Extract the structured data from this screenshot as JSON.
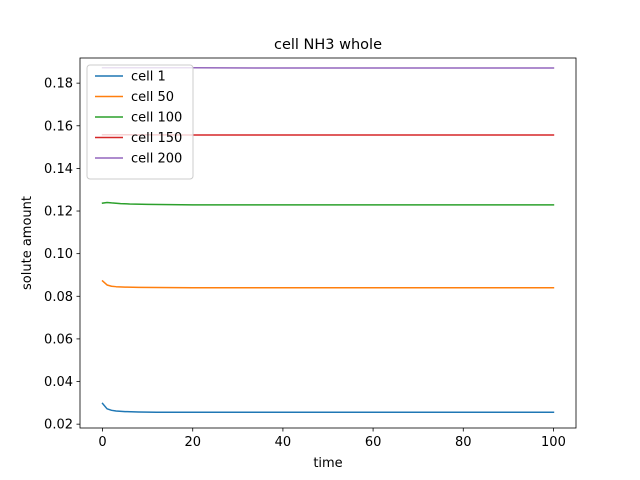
{
  "chart_data": {
    "type": "line",
    "title": "cell NH3 whole",
    "xlabel": "time",
    "ylabel": "solute amount",
    "xlim": [
      -5,
      105
    ],
    "ylim": [
      0.0182,
      0.1918
    ],
    "xticks": [
      0,
      20,
      40,
      60,
      80,
      100
    ],
    "yticks": [
      0.02,
      0.04,
      0.06,
      0.08,
      0.1,
      0.12,
      0.14,
      0.16,
      0.18
    ],
    "xtick_labels": [
      "0",
      "20",
      "40",
      "60",
      "80",
      "100"
    ],
    "ytick_labels": [
      "0.02",
      "0.04",
      "0.06",
      "0.08",
      "0.10",
      "0.12",
      "0.14",
      "0.16",
      "0.18"
    ],
    "grid": false,
    "legend_position": "top-left",
    "series": [
      {
        "name": "cell 1",
        "color": "#1f77b4",
        "x": [
          0,
          1,
          2,
          3,
          5,
          8,
          12,
          20,
          40,
          60,
          80,
          100
        ],
        "y": [
          0.0297,
          0.0272,
          0.0265,
          0.0262,
          0.0259,
          0.0257,
          0.0256,
          0.0256,
          0.0256,
          0.0256,
          0.0256,
          0.0256
        ]
      },
      {
        "name": "cell 50",
        "color": "#ff7f0e",
        "x": [
          0,
          1,
          2,
          3,
          5,
          8,
          12,
          20,
          40,
          60,
          80,
          100
        ],
        "y": [
          0.0872,
          0.0853,
          0.0847,
          0.0845,
          0.0843,
          0.0842,
          0.0841,
          0.084,
          0.084,
          0.084,
          0.084,
          0.084
        ]
      },
      {
        "name": "cell 100",
        "color": "#2ca02c",
        "x": [
          0,
          1,
          2,
          4,
          6,
          10,
          15,
          20,
          40,
          60,
          80,
          100
        ],
        "y": [
          0.1237,
          0.124,
          0.1238,
          0.1235,
          0.1233,
          0.1231,
          0.123,
          0.1229,
          0.1229,
          0.1229,
          0.1229,
          0.1229
        ]
      },
      {
        "name": "cell 150",
        "color": "#d62728",
        "x": [
          0,
          20,
          40,
          60,
          80,
          100
        ],
        "y": [
          0.1558,
          0.1557,
          0.1557,
          0.1557,
          0.1557,
          0.1557
        ]
      },
      {
        "name": "cell 200",
        "color": "#9467bd",
        "x": [
          0,
          20,
          40,
          60,
          80,
          100
        ],
        "y": [
          0.1872,
          0.1872,
          0.1871,
          0.1871,
          0.1871,
          0.1871
        ]
      }
    ]
  }
}
